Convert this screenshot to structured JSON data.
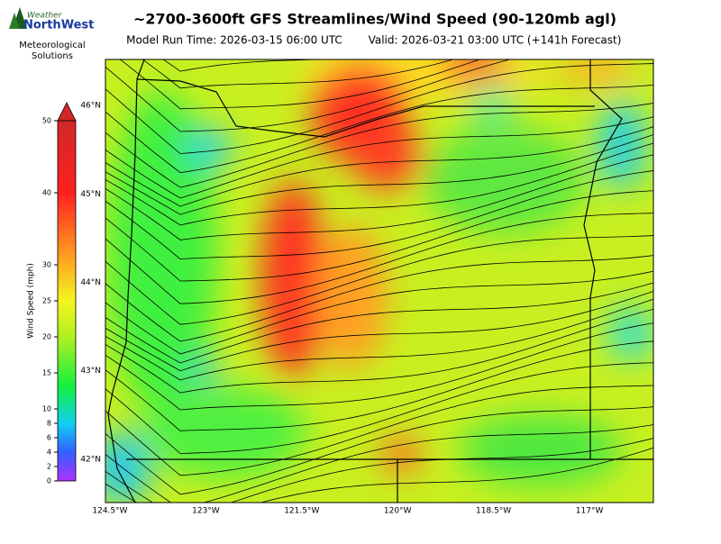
{
  "header": {
    "title": "~2700-3600ft GFS Streamlines/Wind Speed (90-120mb agl)",
    "model_run": "Model Run Time: 2026-03-15 06:00 UTC",
    "valid": "Valid: 2026-03-21 03:00 UTC  (+141h Forecast)"
  },
  "logo": {
    "word1": "Weather",
    "word2": "NorthWest",
    "line1": "Meteorological",
    "line2": "Solutions"
  },
  "colorbar": {
    "label": "Wind Speed (mph)",
    "lim": [
      0,
      50
    ],
    "ticks": [
      0,
      2,
      4,
      6,
      8,
      10,
      15,
      20,
      25,
      30,
      40,
      50
    ]
  },
  "map": {
    "latlim": [
      41.51,
      46.52
    ],
    "lonlim": [
      -124.57,
      -116.0
    ],
    "lat_ticks": [
      {
        "value": 46,
        "label": "46°N"
      },
      {
        "value": 45,
        "label": "45°N"
      },
      {
        "value": 44,
        "label": "44°N"
      },
      {
        "value": 43,
        "label": "43°N"
      },
      {
        "value": 42,
        "label": "42°N"
      }
    ],
    "lon_ticks": [
      {
        "value": -124.5,
        "label": "124.5°W"
      },
      {
        "value": -123,
        "label": "123°W"
      },
      {
        "value": -121.5,
        "label": "121.5°W"
      },
      {
        "value": -120,
        "label": "120°W"
      },
      {
        "value": -118.5,
        "label": "118.5°W"
      },
      {
        "value": -117,
        "label": "117°W"
      }
    ]
  }
}
